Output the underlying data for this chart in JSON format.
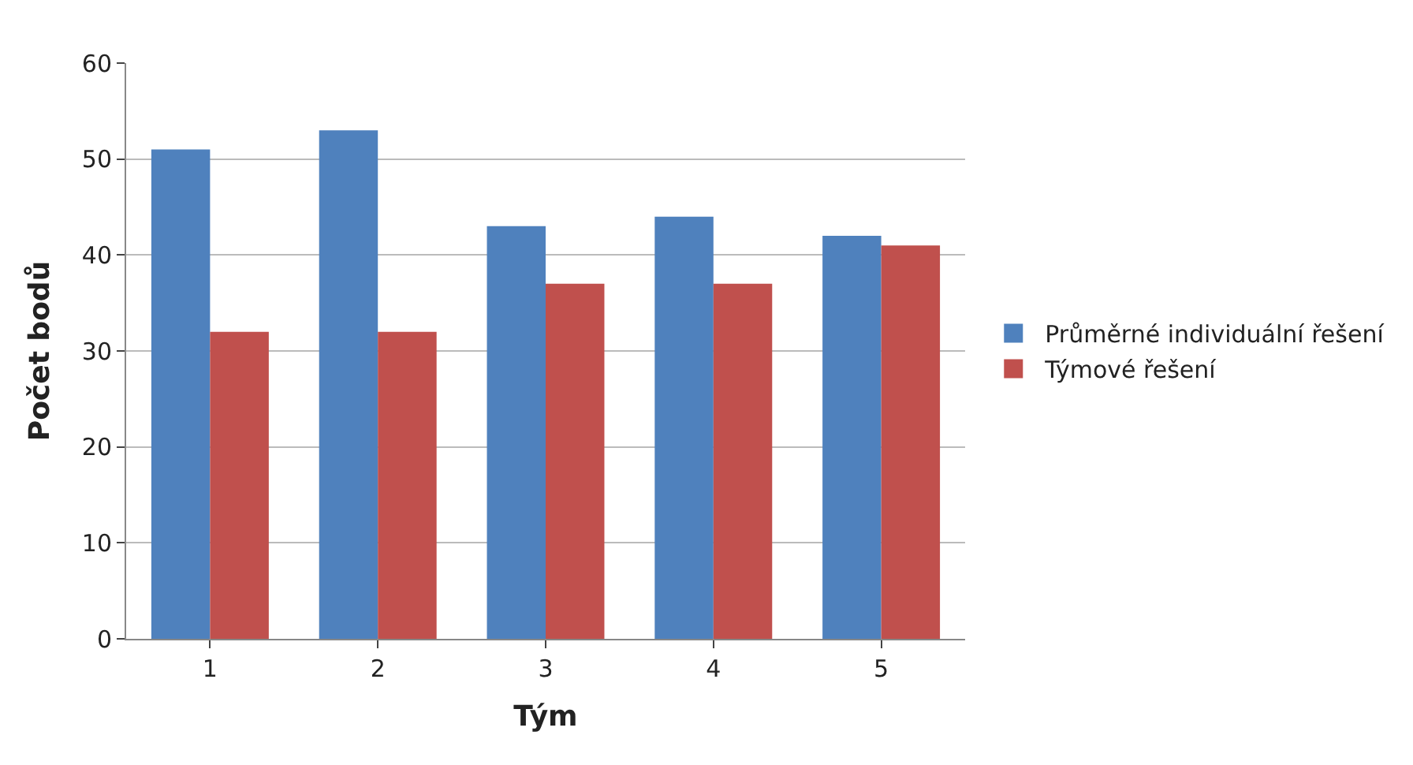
{
  "chart_data": {
    "type": "bar",
    "xlabel": "Tým",
    "ylabel": "Počet bodů",
    "categories": [
      "1",
      "2",
      "3",
      "4",
      "5"
    ],
    "series": [
      {
        "name": "Průměrné individuální řešení",
        "color": "#4f81bd",
        "values": [
          51,
          53,
          43,
          44,
          42
        ]
      },
      {
        "name": "Týmové řešení",
        "color": "#c0504d",
        "values": [
          32,
          32,
          37,
          37,
          41
        ]
      }
    ],
    "ylim": [
      0,
      60
    ],
    "yticks": [
      0,
      10,
      20,
      30,
      40,
      50,
      60
    ],
    "grid": "y",
    "legend": "right"
  }
}
